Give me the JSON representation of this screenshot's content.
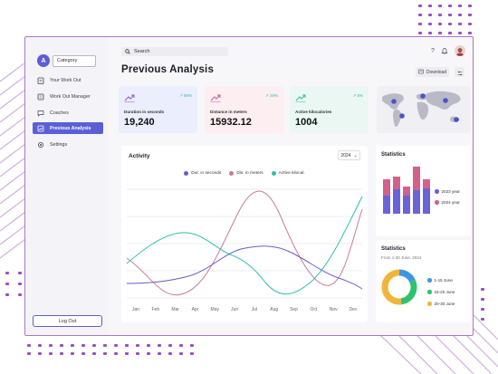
{
  "sidebar": {
    "avatar_letter": "A",
    "category": "Category",
    "items": [
      {
        "label": "Your Work Out",
        "icon": "clipboard-icon",
        "active": false
      },
      {
        "label": "Work Out Manager",
        "icon": "list-icon",
        "active": false
      },
      {
        "label": "Coaches",
        "icon": "chat-icon",
        "active": false
      },
      {
        "label": "Previous Analysis",
        "icon": "analysis-icon",
        "active": true
      },
      {
        "label": "Settings",
        "icon": "gear-icon",
        "active": false
      }
    ],
    "logout": "Log Out"
  },
  "header": {
    "search_placeholder": "Search",
    "help": "?",
    "title": "Previous Analysis",
    "download": "Download"
  },
  "stats": [
    {
      "label": "Duration in seconds",
      "value": "19,240",
      "change": "86%",
      "bg": "#ebeefc",
      "accent": "#8d5cc4"
    },
    {
      "label": "Distance in meters",
      "value": "15932.12",
      "change": "26%",
      "bg": "#fdeef2",
      "accent": "#c85b8f"
    },
    {
      "label": "Active kilocalories",
      "value": "1004",
      "change": "5%",
      "bg": "#eaf7f2",
      "accent": "#2fbf9a"
    }
  ],
  "activity": {
    "title": "Activity",
    "year": "2024",
    "legend": [
      {
        "name": "Dur. in seconds",
        "color": "#6a5bc9"
      },
      {
        "name": "Dis. in meters",
        "color": "#c77a97"
      },
      {
        "name": "Active kilocal.",
        "color": "#2fc2a1"
      }
    ],
    "months": [
      "Jan",
      "Feb",
      "Mar",
      "Apr",
      "May",
      "Jun",
      "Jul",
      "Aug",
      "Sep",
      "Oct",
      "Nov",
      "Dec"
    ]
  },
  "statistics_bars": {
    "title": "Statistics",
    "legend": [
      {
        "name": "2023 year",
        "color": "#6a63d8"
      },
      {
        "name": "2024 year",
        "color": "#d2608c"
      }
    ]
  },
  "statistics_donut": {
    "title": "Statistics",
    "subtitle": "From 1-30 June, 2024",
    "legend": [
      {
        "name": "1-15 June",
        "color": "#3b97e6"
      },
      {
        "name": "15-20 June",
        "color": "#2fc26c"
      },
      {
        "name": "20-30 June",
        "color": "#f0b53b"
      }
    ],
    "fractions": [
      0.18,
      0.3,
      0.52
    ]
  }
}
